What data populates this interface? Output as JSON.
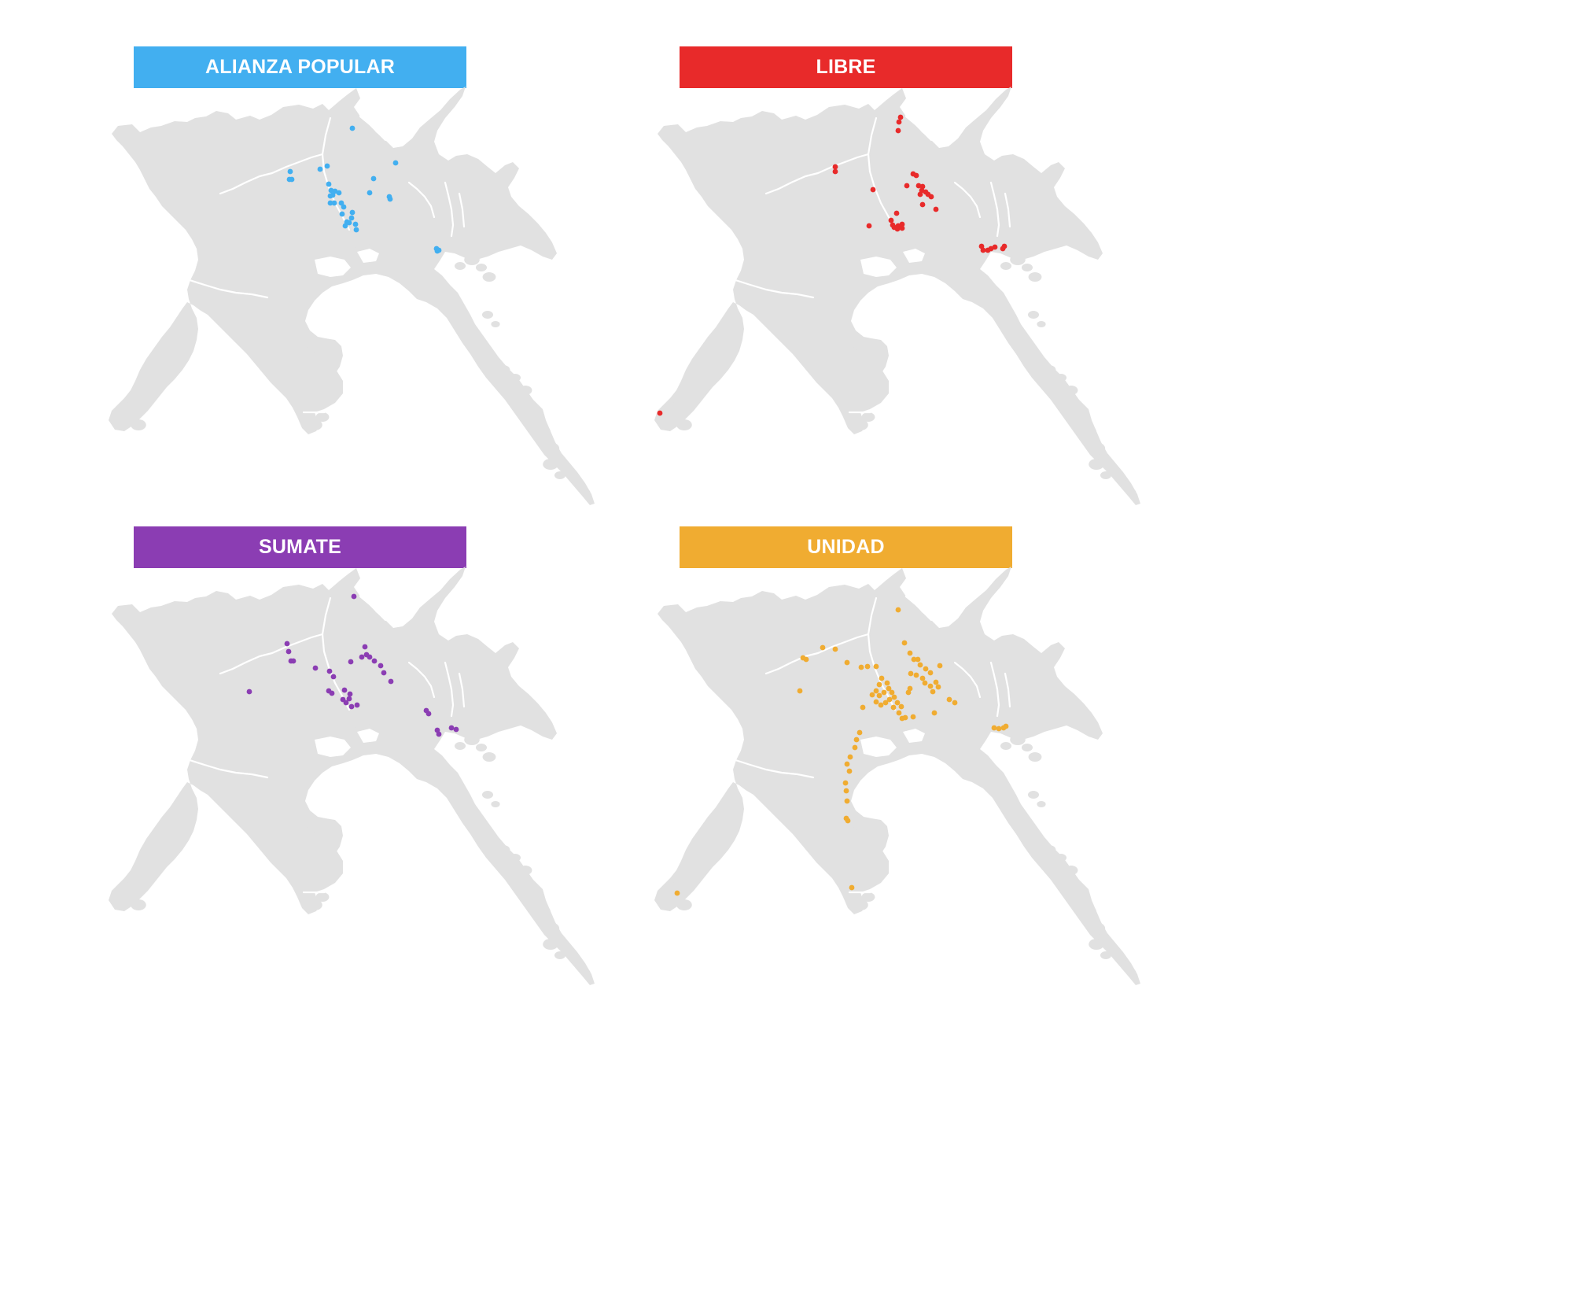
{
  "panels": [
    {
      "id": "alianza-popular",
      "title": "ALIANZA POPULAR",
      "color": "#42aff0",
      "points": [
        [
          448,
          163
        ],
        [
          369,
          218
        ],
        [
          368,
          228
        ],
        [
          371,
          228
        ],
        [
          407,
          215
        ],
        [
          416,
          211
        ],
        [
          503,
          207
        ],
        [
          475,
          227
        ],
        [
          418,
          234
        ],
        [
          421,
          242
        ],
        [
          426,
          243
        ],
        [
          420,
          249
        ],
        [
          423,
          248
        ],
        [
          431,
          245
        ],
        [
          470,
          245
        ],
        [
          495,
          250
        ],
        [
          496,
          253
        ],
        [
          425,
          258
        ],
        [
          434,
          258
        ],
        [
          437,
          263
        ],
        [
          420,
          258
        ],
        [
          435,
          272
        ],
        [
          448,
          270
        ],
        [
          447,
          277
        ],
        [
          441,
          282
        ],
        [
          444,
          283
        ],
        [
          439,
          287
        ],
        [
          452,
          285
        ],
        [
          453,
          292
        ],
        [
          555,
          316
        ],
        [
          556,
          319
        ],
        [
          558,
          318
        ]
      ]
    },
    {
      "id": "libre",
      "title": "LIBRE",
      "color": "#e82a2a",
      "points": [
        [
          1145,
          149
        ],
        [
          1143,
          155
        ],
        [
          1142,
          166
        ],
        [
          1062,
          212
        ],
        [
          1062,
          218
        ],
        [
          1110,
          241
        ],
        [
          1161,
          221
        ],
        [
          1165,
          223
        ],
        [
          1153,
          236
        ],
        [
          1168,
          236
        ],
        [
          1173,
          237
        ],
        [
          1172,
          242
        ],
        [
          1177,
          244
        ],
        [
          1180,
          247
        ],
        [
          1184,
          250
        ],
        [
          1170,
          247
        ],
        [
          1190,
          266
        ],
        [
          1173,
          260
        ],
        [
          1140,
          271
        ],
        [
          1133,
          280
        ],
        [
          1135,
          286
        ],
        [
          1137,
          289
        ],
        [
          1142,
          287
        ],
        [
          1147,
          285
        ],
        [
          1147,
          290
        ],
        [
          1141,
          291
        ],
        [
          1105,
          287
        ],
        [
          1248,
          313
        ],
        [
          1250,
          318
        ],
        [
          1256,
          318
        ],
        [
          1260,
          316
        ],
        [
          1265,
          314
        ],
        [
          1277,
          313
        ],
        [
          1275,
          316
        ],
        [
          839,
          525
        ]
      ]
    },
    {
      "id": "sumate",
      "title": "SUMATE",
      "color": "#8b3db3",
      "points": [
        [
          450,
          758
        ],
        [
          365,
          818
        ],
        [
          367,
          828
        ],
        [
          370,
          840
        ],
        [
          373,
          840
        ],
        [
          401,
          849
        ],
        [
          464,
          822
        ],
        [
          460,
          835
        ],
        [
          466,
          832
        ],
        [
          470,
          835
        ],
        [
          476,
          840
        ],
        [
          446,
          841
        ],
        [
          419,
          853
        ],
        [
          424,
          860
        ],
        [
          484,
          846
        ],
        [
          488,
          855
        ],
        [
          497,
          866
        ],
        [
          317,
          879
        ],
        [
          418,
          878
        ],
        [
          422,
          881
        ],
        [
          438,
          877
        ],
        [
          445,
          882
        ],
        [
          444,
          888
        ],
        [
          436,
          889
        ],
        [
          440,
          893
        ],
        [
          447,
          898
        ],
        [
          454,
          896
        ],
        [
          542,
          903
        ],
        [
          545,
          907
        ],
        [
          556,
          928
        ],
        [
          558,
          933
        ],
        [
          574,
          925
        ],
        [
          580,
          927
        ]
      ]
    },
    {
      "id": "unidad",
      "title": "UNIDAD",
      "color": "#f0ac31",
      "points": [
        [
          1142,
          775
        ],
        [
          1021,
          836
        ],
        [
          1025,
          838
        ],
        [
          1046,
          823
        ],
        [
          1062,
          825
        ],
        [
          1150,
          817
        ],
        [
          1157,
          830
        ],
        [
          1162,
          838
        ],
        [
          1167,
          838
        ],
        [
          1077,
          842
        ],
        [
          1095,
          848
        ],
        [
          1103,
          847
        ],
        [
          1114,
          847
        ],
        [
          1170,
          845
        ],
        [
          1177,
          850
        ],
        [
          1183,
          855
        ],
        [
          1195,
          846
        ],
        [
          1158,
          856
        ],
        [
          1165,
          858
        ],
        [
          1173,
          862
        ],
        [
          1176,
          868
        ],
        [
          1183,
          872
        ],
        [
          1190,
          867
        ],
        [
          1193,
          873
        ],
        [
          1186,
          879
        ],
        [
          1121,
          862
        ],
        [
          1128,
          868
        ],
        [
          1118,
          870
        ],
        [
          1114,
          878
        ],
        [
          1109,
          883
        ],
        [
          1118,
          884
        ],
        [
          1124,
          880
        ],
        [
          1130,
          875
        ],
        [
          1134,
          880
        ],
        [
          1137,
          886
        ],
        [
          1131,
          889
        ],
        [
          1126,
          893
        ],
        [
          1120,
          896
        ],
        [
          1114,
          892
        ],
        [
          1141,
          893
        ],
        [
          1146,
          898
        ],
        [
          1143,
          906
        ],
        [
          1136,
          899
        ],
        [
          1147,
          913
        ],
        [
          1151,
          912
        ],
        [
          1161,
          911
        ],
        [
          1157,
          875
        ],
        [
          1155,
          880
        ],
        [
          1017,
          878
        ],
        [
          1097,
          899
        ],
        [
          1093,
          931
        ],
        [
          1089,
          940
        ],
        [
          1087,
          950
        ],
        [
          1081,
          962
        ],
        [
          1077,
          971
        ],
        [
          1080,
          980
        ],
        [
          1075,
          995
        ],
        [
          1076,
          1005
        ],
        [
          1077,
          1018
        ],
        [
          1076,
          1040
        ],
        [
          1078,
          1043
        ],
        [
          1207,
          889
        ],
        [
          1214,
          893
        ],
        [
          1188,
          906
        ],
        [
          1264,
          925
        ],
        [
          1270,
          926
        ],
        [
          1276,
          925
        ],
        [
          1279,
          923
        ],
        [
          861,
          1135
        ],
        [
          1083,
          1128
        ]
      ]
    }
  ]
}
